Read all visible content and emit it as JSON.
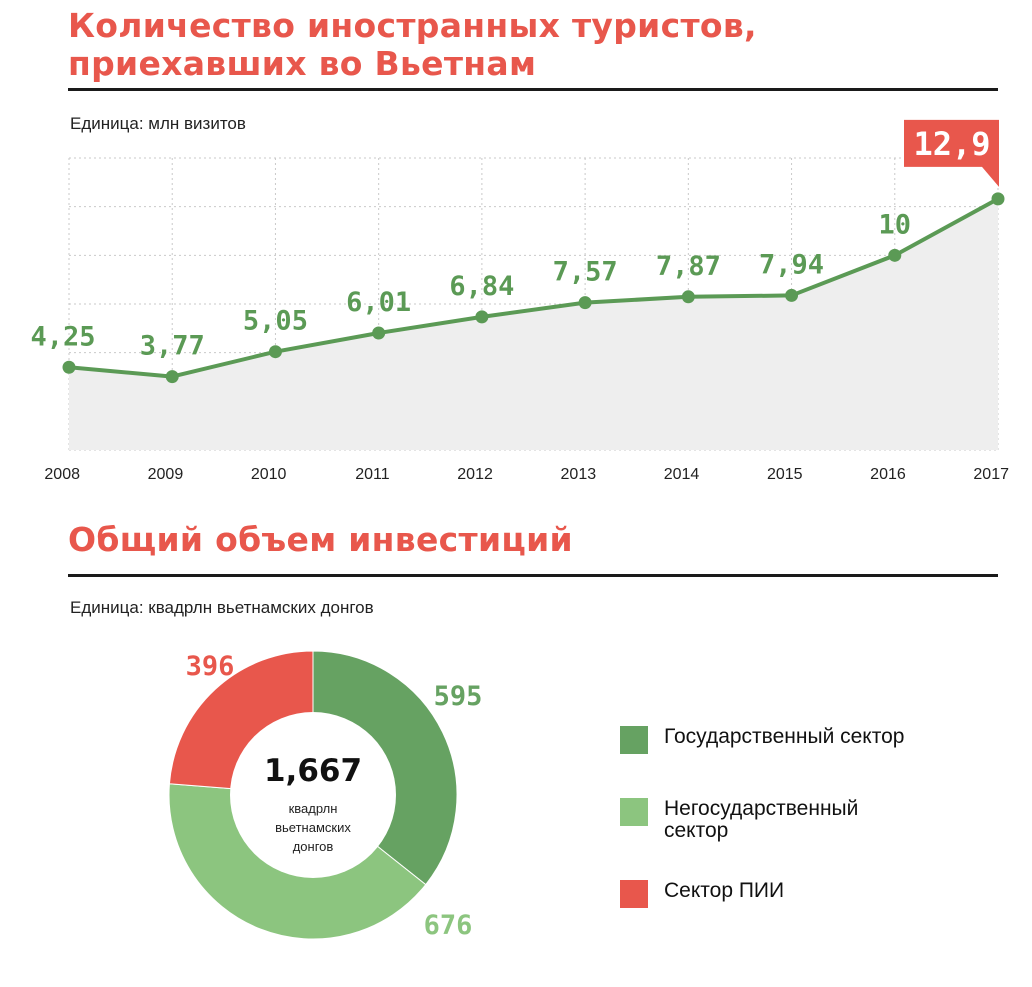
{
  "section1": {
    "title_line1": "Количество иностранных туристов,",
    "title_line2": "приехавших во Вьетнам",
    "unit": "Единица: млн визитов"
  },
  "section2": {
    "title": "Общий объем инвестиций",
    "unit": "Единица: квадрлн вьетнамских донгов",
    "center_total": "1,667",
    "center_caption_lines": [
      "квадрлн",
      "вьетнамских",
      "донгов"
    ]
  },
  "colors": {
    "title_red": "#e8574c",
    "line_green": "#5b9a55",
    "area_gray": "#eeeeee",
    "state_green": "#66a262",
    "nonstate_green": "#8cc57f",
    "fdi_red": "#e8574c"
  },
  "chart_data": [
    {
      "type": "line",
      "title": "Количество иностранных туристов, приехавших во Вьетнам",
      "ylabel": "млн визитов",
      "x": [
        "2008",
        "2009",
        "2010",
        "2011",
        "2012",
        "2013",
        "2014",
        "2015",
        "2016",
        "2017"
      ],
      "values": [
        4.25,
        3.77,
        5.05,
        6.01,
        6.84,
        7.57,
        7.87,
        7.94,
        10,
        12.9
      ],
      "labels": [
        "4,25",
        "3,77",
        "5,05",
        "6,01",
        "6,84",
        "7,57",
        "7,87",
        "7,94",
        "10",
        "12,9"
      ],
      "ylim": [
        0,
        15
      ],
      "grid": true,
      "fill": "area"
    },
    {
      "type": "pie",
      "title": "Общий объем инвестиций",
      "unit": "квадрлн вьетнамских донгов",
      "total": 1667,
      "slices": [
        {
          "name": "Государственный сектор",
          "value": 595,
          "label": "595"
        },
        {
          "name": "Негосударственный сектор",
          "value": 676,
          "label": "676"
        },
        {
          "name": "Сектор ПИИ",
          "value": 396,
          "label": "396"
        }
      ],
      "legend": "right"
    }
  ]
}
